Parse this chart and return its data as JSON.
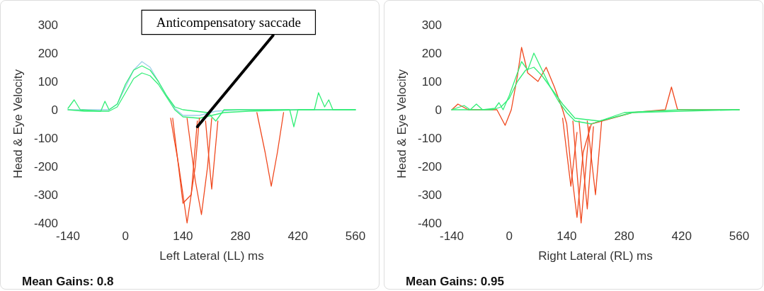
{
  "chart_data": [
    {
      "type": "line",
      "xlabel": "Left Lateral (LL) ms",
      "ylabel": "Head & Eye Velocity",
      "xlim": [
        -140,
        560
      ],
      "xticks": [
        -140,
        0,
        140,
        280,
        420,
        560
      ],
      "ylim": [
        -400,
        300
      ],
      "yticks": [
        -400,
        -300,
        -200,
        -100,
        0,
        100,
        200,
        300
      ],
      "grid": false,
      "marker": "none",
      "line_style": "solid",
      "annotations": [
        "Mean Gains: 0.8",
        {
          "text": "Anticompensatory saccade",
          "x": 175,
          "y": -60
        }
      ],
      "series": [
        {
          "color": "#9ccfe8",
          "x": [
            -140,
            -40,
            -20,
            0,
            20,
            40,
            60,
            80,
            100,
            120,
            140,
            180,
            220,
            280,
            560
          ],
          "values": [
            0,
            0,
            20,
            80,
            140,
            170,
            150,
            100,
            50,
            5,
            -20,
            -20,
            -5,
            0,
            0
          ]
        },
        {
          "color": "#33ee77",
          "x": [
            -140,
            -100,
            -40,
            -20,
            0,
            20,
            40,
            60,
            80,
            100,
            120,
            140,
            180,
            240,
            300,
            420,
            560
          ],
          "values": [
            0,
            -5,
            -5,
            10,
            60,
            110,
            130,
            120,
            90,
            45,
            0,
            -25,
            -30,
            -10,
            -5,
            0,
            0
          ]
        },
        {
          "color": "#33ee77",
          "x": [
            -140,
            -125,
            -110,
            -60,
            -50,
            -40,
            -20,
            0,
            20,
            40,
            60,
            80,
            100,
            120,
            140,
            200,
            220,
            240,
            400,
            410,
            420,
            460,
            470,
            485,
            495,
            505,
            560
          ],
          "values": [
            5,
            35,
            0,
            -5,
            30,
            0,
            20,
            90,
            140,
            155,
            140,
            100,
            50,
            10,
            0,
            -10,
            -40,
            0,
            0,
            -60,
            0,
            0,
            60,
            10,
            35,
            0,
            0
          ]
        },
        {
          "color": "#f0481e",
          "x": [
            110,
            130,
            150,
            170,
            180
          ],
          "values": [
            -30,
            -200,
            -400,
            -200,
            -30
          ]
        },
        {
          "color": "#f0481e",
          "x": [
            150,
            170,
            185,
            200,
            210
          ],
          "values": [
            -30,
            -250,
            -370,
            -200,
            -30
          ]
        },
        {
          "color": "#f0481e",
          "x": [
            195,
            210,
            225
          ],
          "values": [
            -40,
            -280,
            -40
          ]
        },
        {
          "color": "#f0481e",
          "x": [
            320,
            340,
            355,
            370,
            385
          ],
          "values": [
            -10,
            -150,
            -270,
            -150,
            -10
          ]
        },
        {
          "color": "#f0481e",
          "x": [
            115,
            140,
            160,
            175
          ],
          "values": [
            -30,
            -330,
            -300,
            -40
          ]
        }
      ]
    },
    {
      "type": "line",
      "xlabel": "Right Lateral (RL) ms",
      "ylabel": "Head & Eye Velocity",
      "xlim": [
        -140,
        560
      ],
      "xticks": [
        -140,
        0,
        140,
        280,
        420,
        560
      ],
      "ylim": [
        -400,
        300
      ],
      "yticks": [
        -400,
        -300,
        -200,
        -100,
        0,
        100,
        200,
        300
      ],
      "grid": false,
      "marker": "none",
      "line_style": "solid",
      "annotations": [
        "Mean Gains: 0.95"
      ],
      "series": [
        {
          "color": "#f0481e",
          "x": [
            -140,
            -125,
            -100,
            -30,
            -10,
            5,
            20,
            30,
            45,
            70,
            90,
            110,
            130,
            140,
            150,
            165,
            180,
            200,
            300,
            380,
            395,
            410,
            560
          ],
          "values": [
            0,
            20,
            0,
            0,
            -55,
            0,
            120,
            220,
            130,
            100,
            150,
            80,
            0,
            -50,
            -200,
            -380,
            -150,
            -50,
            -10,
            0,
            80,
            0,
            0
          ]
        },
        {
          "color": "#f0481e",
          "x": [
            130,
            150,
            165
          ],
          "values": [
            -30,
            -270,
            -80
          ]
        },
        {
          "color": "#f0481e",
          "x": [
            155,
            175,
            195
          ],
          "values": [
            -40,
            -400,
            -60
          ]
        },
        {
          "color": "#f0481e",
          "x": [
            170,
            190,
            205
          ],
          "values": [
            -40,
            -350,
            -60
          ]
        },
        {
          "color": "#f0481e",
          "x": [
            190,
            210,
            225
          ],
          "values": [
            -40,
            -300,
            -40
          ]
        },
        {
          "color": "#33ee77",
          "x": [
            -140,
            -40,
            -20,
            0,
            20,
            40,
            60,
            80,
            100,
            120,
            140,
            160,
            200,
            240,
            280,
            420,
            560
          ],
          "values": [
            0,
            0,
            10,
            40,
            100,
            140,
            150,
            120,
            80,
            30,
            -10,
            -40,
            -50,
            -30,
            -10,
            0,
            0
          ]
        },
        {
          "color": "#33ee77",
          "x": [
            -140,
            -110,
            -95,
            -80,
            -65,
            -35,
            -25,
            -15,
            0,
            30,
            45,
            60,
            80,
            100,
            130,
            160,
            220,
            300,
            560
          ],
          "values": [
            0,
            15,
            0,
            20,
            0,
            5,
            25,
            0,
            50,
            170,
            140,
            200,
            140,
            80,
            20,
            -30,
            -40,
            -10,
            0
          ]
        }
      ]
    }
  ]
}
